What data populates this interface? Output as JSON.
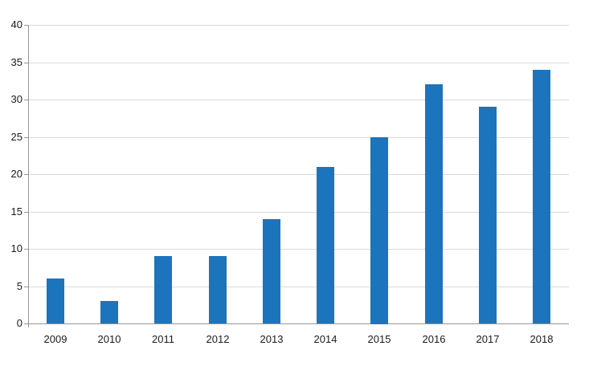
{
  "chart_data": {
    "type": "bar",
    "title": "",
    "categories": [
      "2009",
      "2010",
      "2011",
      "2012",
      "2013",
      "2014",
      "2015",
      "2016",
      "2017",
      "2018"
    ],
    "values": [
      6,
      3,
      9,
      9,
      14,
      21,
      25,
      32,
      29,
      34
    ],
    "xlabel": "",
    "ylabel": "",
    "ylim": [
      0,
      40
    ],
    "yticks": [
      0,
      5,
      10,
      15,
      20,
      25,
      30,
      35,
      40
    ],
    "grid": "horizontal",
    "legend_position": "none"
  },
  "style": {
    "bar_color": "#1c74bd",
    "gridline_color": "#dadada",
    "axis_color": "#969696",
    "label_color": "#1a1a1a",
    "background_color": "#ffffff"
  }
}
